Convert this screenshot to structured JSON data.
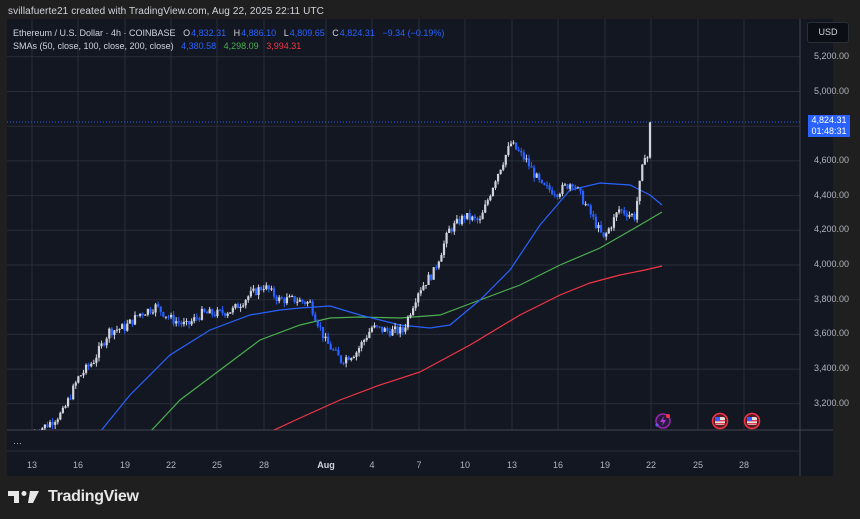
{
  "credit": "svillafuerte21 created with TradingView.com, Aug 22, 2025 22:11 UTC",
  "legend": {
    "symbol": "Ethereum / U.S. Dollar · 4h · COINBASE",
    "o_label": "O",
    "o": "4,832.31",
    "h_label": "H",
    "h": "4,886.10",
    "l_label": "L",
    "l": "4,809.65",
    "c_label": "C",
    "c": "4,824.31",
    "change": "−9.34 (−0.19%)",
    "sma_label": "SMAs (50, close, 100, close, 200, close)",
    "sma50": "4,380.58",
    "sma100": "4,298.09",
    "sma200": "3,994.31"
  },
  "currency": "USD",
  "price_tag": {
    "price": "4,824.31",
    "countdown": "01:48:31"
  },
  "more_indicator": "···",
  "logo": {
    "text": "TradingView"
  },
  "colors": {
    "background": "#131722",
    "up": "#d1d4dc",
    "down": "#2962ff",
    "sma50": "#2962ff",
    "sma100": "#4caf50",
    "sma200": "#f23645",
    "grid": "#2a2e39",
    "price_tag": "#2962ff"
  },
  "chart_data": {
    "type": "candlestick",
    "title": "Ethereum / U.S. Dollar · 4h · COINBASE",
    "xlabel": "",
    "ylabel": "USD",
    "ylim": [
      3050,
      5300
    ],
    "y_ticks": [
      "5,200.00",
      "5,000.00",
      "4,600.00",
      "4,400.00",
      "4,200.00",
      "4,000.00",
      "3,800.00",
      "3,600.00",
      "3,400.00",
      "3,200.00"
    ],
    "x_ticks": [
      "13",
      "16",
      "19",
      "22",
      "25",
      "28",
      "Aug",
      "4",
      "7",
      "10",
      "13",
      "16",
      "19",
      "22",
      "25",
      "28"
    ],
    "grid": true,
    "last_price": 4824.31,
    "ohlc_last": {
      "open": 4832.31,
      "high": 4886.1,
      "low": 4809.65,
      "close": 4824.31
    },
    "approx_daily_close": [
      {
        "date": "Jul 13",
        "close": 3030
      },
      {
        "date": "Jul 14",
        "close": 3080
      },
      {
        "date": "Jul 15",
        "close": 3150
      },
      {
        "date": "Jul 16",
        "close": 3350
      },
      {
        "date": "Jul 17",
        "close": 3450
      },
      {
        "date": "Jul 18",
        "close": 3620
      },
      {
        "date": "Jul 19",
        "close": 3640
      },
      {
        "date": "Jul 20",
        "close": 3720
      },
      {
        "date": "Jul 21",
        "close": 3760
      },
      {
        "date": "Jul 22",
        "close": 3690
      },
      {
        "date": "Jul 23",
        "close": 3650
      },
      {
        "date": "Jul 24",
        "close": 3720
      },
      {
        "date": "Jul 25",
        "close": 3720
      },
      {
        "date": "Jul 26",
        "close": 3740
      },
      {
        "date": "Jul 27",
        "close": 3820
      },
      {
        "date": "Jul 28",
        "close": 3880
      },
      {
        "date": "Jul 29",
        "close": 3800
      },
      {
        "date": "Jul 30",
        "close": 3800
      },
      {
        "date": "Jul 31",
        "close": 3780
      },
      {
        "date": "Aug 1",
        "close": 3560
      },
      {
        "date": "Aug 2",
        "close": 3450
      },
      {
        "date": "Aug 3",
        "close": 3500
      },
      {
        "date": "Aug 4",
        "close": 3640
      },
      {
        "date": "Aug 5",
        "close": 3620
      },
      {
        "date": "Aug 6",
        "close": 3620
      },
      {
        "date": "Aug 7",
        "close": 3850
      },
      {
        "date": "Aug 8",
        "close": 3960
      },
      {
        "date": "Aug 9",
        "close": 4200
      },
      {
        "date": "Aug 10",
        "close": 4280
      },
      {
        "date": "Aug 11",
        "close": 4250
      },
      {
        "date": "Aug 12",
        "close": 4500
      },
      {
        "date": "Aug 13",
        "close": 4700
      },
      {
        "date": "Aug 14",
        "close": 4600
      },
      {
        "date": "Aug 15",
        "close": 4450
      },
      {
        "date": "Aug 16",
        "close": 4420
      },
      {
        "date": "Aug 17",
        "close": 4480
      },
      {
        "date": "Aug 18",
        "close": 4320
      },
      {
        "date": "Aug 19",
        "close": 4150
      },
      {
        "date": "Aug 20",
        "close": 4320
      },
      {
        "date": "Aug 21",
        "close": 4280
      },
      {
        "date": "Aug 22",
        "close": 4824.31
      }
    ],
    "series": [
      {
        "name": "SMA 50",
        "color": "#2962ff",
        "last": 4380.58
      },
      {
        "name": "SMA 100",
        "color": "#4caf50",
        "last": 4298.09
      },
      {
        "name": "SMA 200",
        "color": "#f23645",
        "last": 3994.31
      }
    ],
    "events": [
      "dividends/earnings-icon Aug 22",
      "us-economic-event Aug 26",
      "us-economic-event Aug 28"
    ]
  }
}
